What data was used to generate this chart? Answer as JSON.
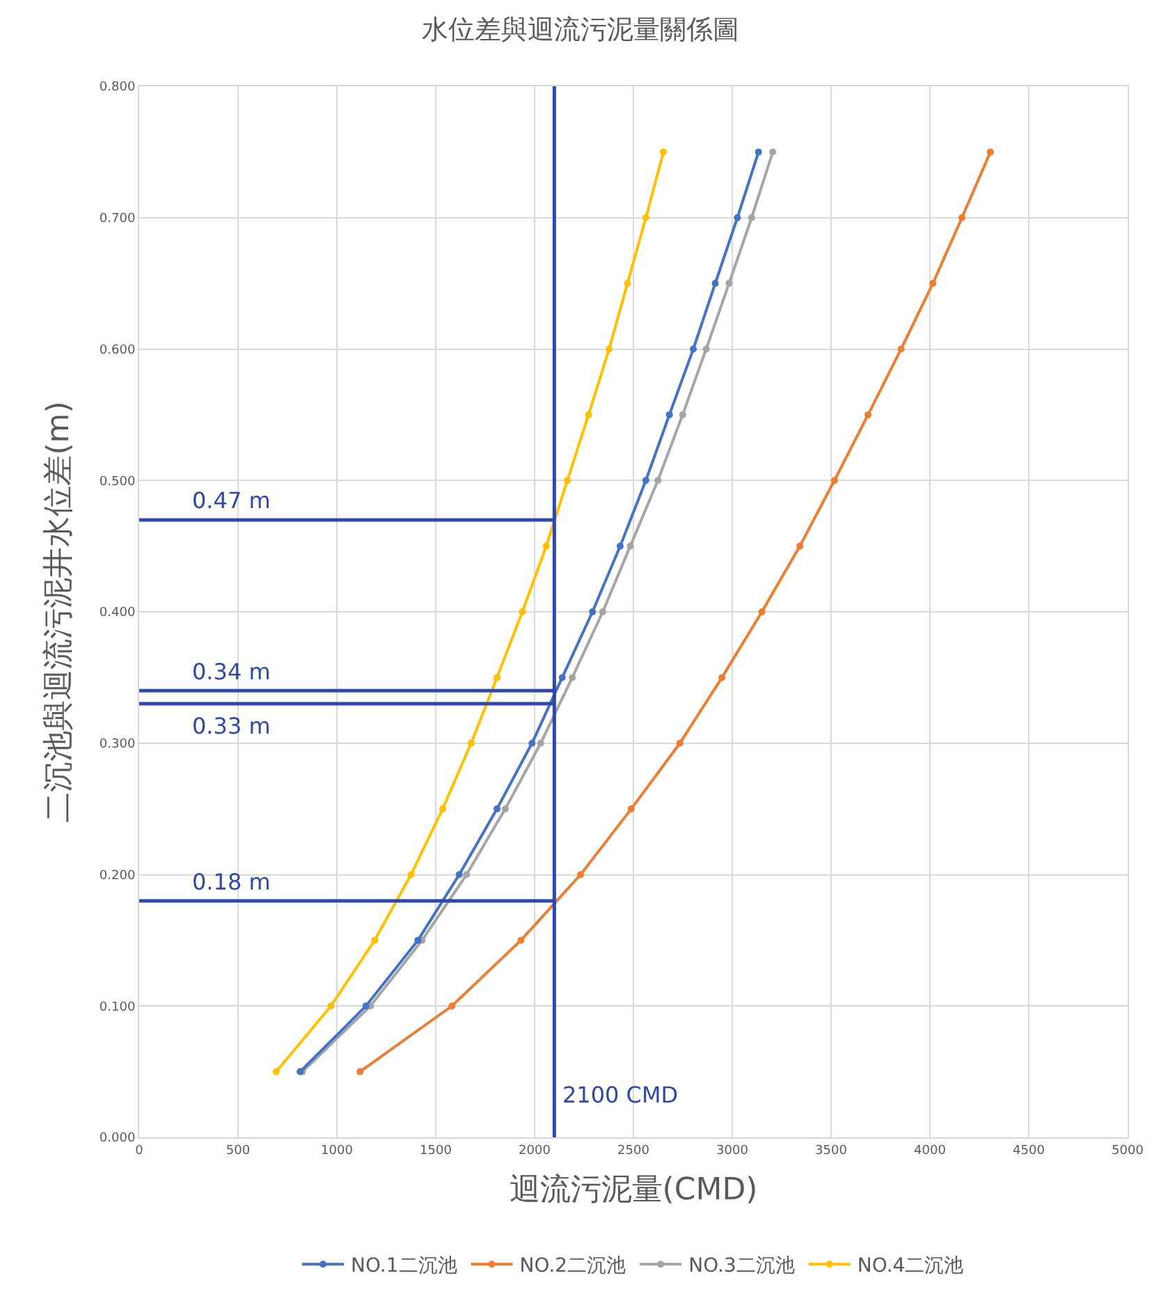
{
  "chart_data": {
    "type": "line",
    "title": "水位差與迴流污泥量關係圖",
    "xlabel": "迴流污泥量(CMD)",
    "ylabel": "二沉池與迴流污泥井水位差(m)",
    "series": [
      {
        "name": "NO.1二沉池",
        "color": "#4472c4",
        "x": [
          814,
          1147,
          1410,
          1619,
          1810,
          1987,
          2140,
          2293,
          2433,
          2563,
          2682,
          2803,
          2914,
          3026,
          3133
        ],
        "values": [
          0.05,
          0.1,
          0.15,
          0.2,
          0.25,
          0.3,
          0.35,
          0.4,
          0.45,
          0.5,
          0.55,
          0.6,
          0.65,
          0.7,
          0.75
        ]
      },
      {
        "name": "NO.2二沉池",
        "color": "#ed7d31",
        "x": [
          1117,
          1582,
          1931,
          2233,
          2489,
          2735,
          2948,
          3150,
          3342,
          3517,
          3687,
          3854,
          4015,
          4162,
          4306
        ],
        "values": [
          0.05,
          0.1,
          0.15,
          0.2,
          0.25,
          0.3,
          0.35,
          0.4,
          0.45,
          0.5,
          0.55,
          0.6,
          0.65,
          0.7,
          0.75
        ]
      },
      {
        "name": "NO.3二沉池",
        "color": "#a5a5a5",
        "x": [
          826,
          1170,
          1431,
          1656,
          1852,
          2031,
          2191,
          2345,
          2484,
          2624,
          2749,
          2868,
          2984,
          3098,
          3205
        ],
        "values": [
          0.05,
          0.1,
          0.15,
          0.2,
          0.25,
          0.3,
          0.35,
          0.4,
          0.45,
          0.5,
          0.55,
          0.6,
          0.65,
          0.7,
          0.75
        ]
      },
      {
        "name": "NO.4二沉池",
        "color": "#ffc000",
        "x": [
          693,
          970,
          1191,
          1375,
          1535,
          1679,
          1810,
          1938,
          2059,
          2166,
          2273,
          2377,
          2470,
          2563,
          2652
        ],
        "values": [
          0.05,
          0.1,
          0.15,
          0.2,
          0.25,
          0.3,
          0.35,
          0.4,
          0.45,
          0.5,
          0.55,
          0.6,
          0.65,
          0.7,
          0.75
        ]
      }
    ],
    "xlim": [
      0,
      5000
    ],
    "xticks": [
      0,
      500,
      1000,
      1500,
      2000,
      2500,
      3000,
      3500,
      4000,
      4500,
      5000
    ],
    "ylim": [
      0,
      0.8
    ],
    "yticks": [
      {
        "value": 0,
        "label": "0.000"
      },
      {
        "value": 0.1,
        "label": "0.100"
      },
      {
        "value": 0.2,
        "label": "0.200"
      },
      {
        "value": 0.3,
        "label": "0.300"
      },
      {
        "value": 0.4,
        "label": "0.400"
      },
      {
        "value": 0.5,
        "label": "0.500"
      },
      {
        "value": 0.6,
        "label": "0.600"
      },
      {
        "value": 0.7,
        "label": "0.700"
      },
      {
        "value": 0.8,
        "label": "0.800"
      }
    ],
    "ref_lines": [
      {
        "axis": "x",
        "value": 2100,
        "label": "2100 CMD",
        "color": "#3048a8"
      },
      {
        "axis": "y",
        "value": 0.47,
        "label": "0.47 m",
        "color": "#3048a8"
      },
      {
        "axis": "y",
        "value": 0.34,
        "label": "0.34 m",
        "color": "#3048a8"
      },
      {
        "axis": "y",
        "value": 0.33,
        "label": "0.33 m",
        "color": "#3048a8"
      },
      {
        "axis": "y",
        "value": 0.18,
        "label": "0.18 m",
        "color": "#3048a8"
      }
    ],
    "grid": true,
    "legend": "bottom",
    "marker": "circle",
    "line_style": "solid"
  }
}
